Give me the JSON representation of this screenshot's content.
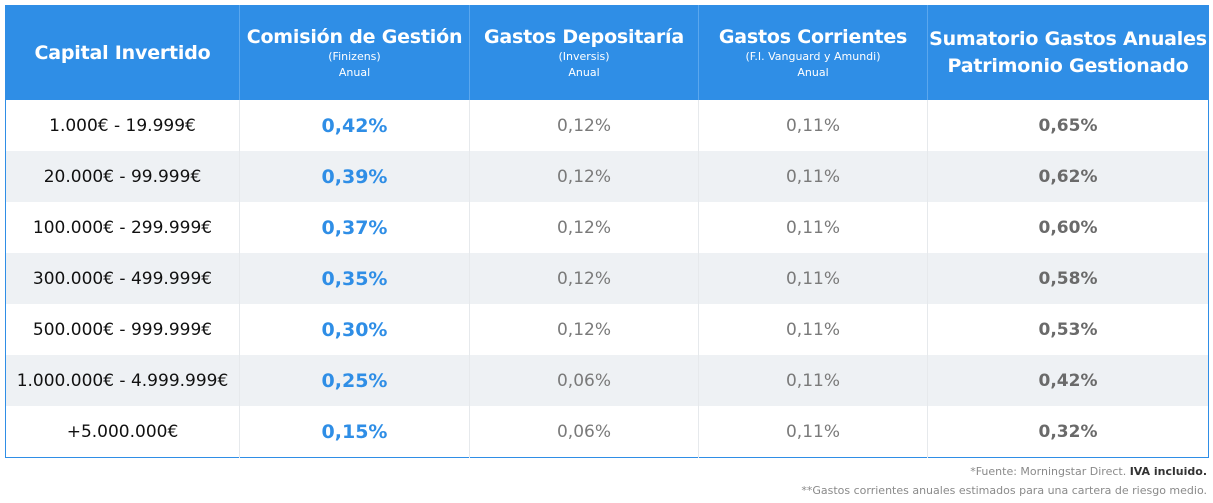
{
  "table": {
    "headers": [
      {
        "title": "Capital Invertido",
        "subtitle": "",
        "note": ""
      },
      {
        "title": "Comisión de Gestión",
        "subtitle": "(Finizens)",
        "note": "Anual"
      },
      {
        "title": "Gastos Depositaría",
        "subtitle": "(Inversis)",
        "note": "Anual"
      },
      {
        "title": "Gastos Corrientes",
        "subtitle": "(F.I. Vanguard y Amundi)",
        "note": "Anual"
      },
      {
        "title_line1": "Sumatorio Gastos Anuales",
        "title_line2": "Patrimonio Gestionado"
      }
    ],
    "rows": [
      {
        "capital": "1.000€ - 19.999€",
        "management": "0,42%",
        "depositary": "0,12%",
        "current": "0,11%",
        "total": "0,65%"
      },
      {
        "capital": "20.000€ - 99.999€",
        "management": "0,39%",
        "depositary": "0,12%",
        "current": "0,11%",
        "total": "0,62%"
      },
      {
        "capital": "100.000€ - 299.999€",
        "management": "0,37%",
        "depositary": "0,12%",
        "current": "0,11%",
        "total": "0,60%"
      },
      {
        "capital": "300.000€ - 499.999€",
        "management": "0,35%",
        "depositary": "0,12%",
        "current": "0,11%",
        "total": "0,58%"
      },
      {
        "capital": "500.000€ - 999.999€",
        "management": "0,30%",
        "depositary": "0,12%",
        "current": "0,11%",
        "total": "0,53%"
      },
      {
        "capital": "1.000.000€ - 4.999.999€",
        "management": "0,25%",
        "depositary": "0,06%",
        "current": "0,11%",
        "total": "0,42%"
      },
      {
        "capital": "+5.000.000€",
        "management": "0,15%",
        "depositary": "0,06%",
        "current": "0,11%",
        "total": "0,32%"
      }
    ]
  },
  "footnotes": {
    "source_prefix": "*Fuente: Morningstar Direct. ",
    "source_bold": "IVA incluido.",
    "note2": "**Gastos corrientes anuales estimados para una cartera de riesgo medio."
  },
  "colors": {
    "header_bg": "#2f8ee6",
    "accent": "#2f8ee6",
    "stripe": "#eef1f4"
  }
}
